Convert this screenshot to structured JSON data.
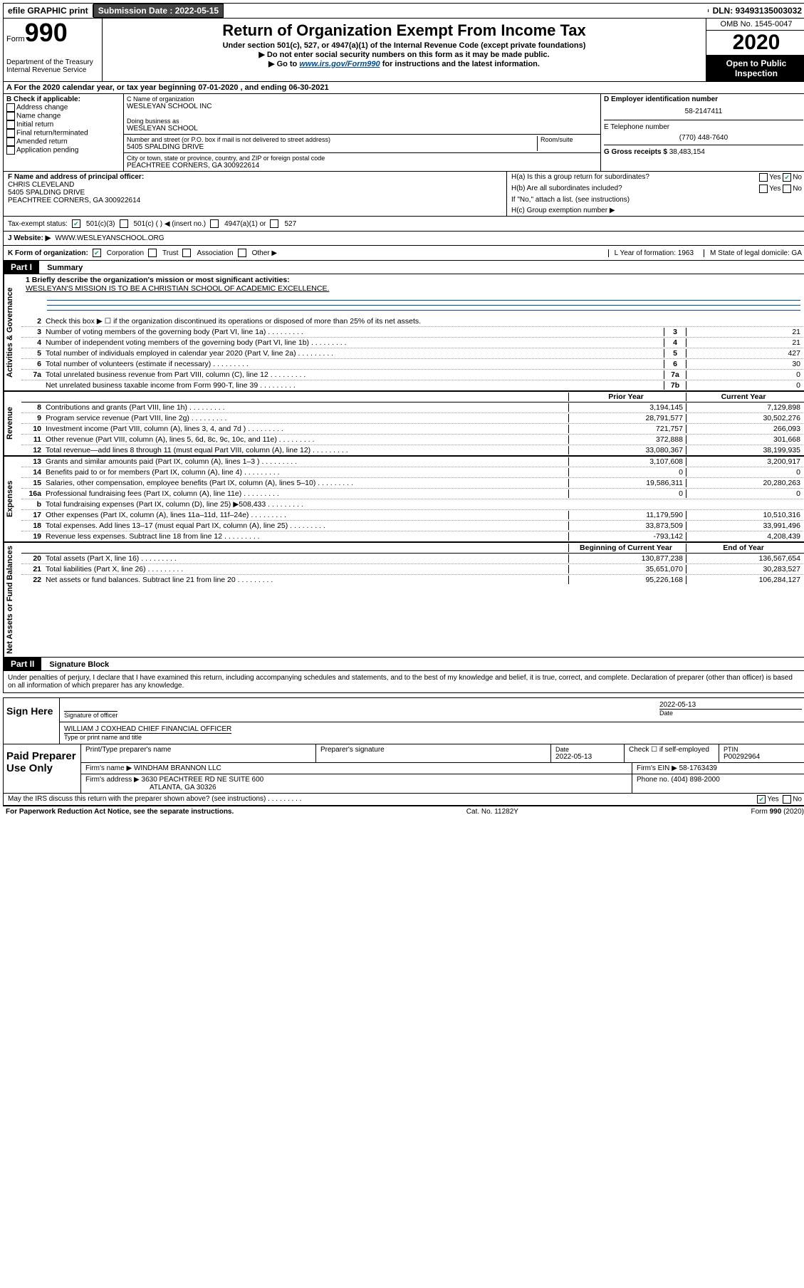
{
  "top_bar": {
    "efile": "efile GRAPHIC print",
    "sub_label": "Submission Date : 2022-05-15",
    "dln": "DLN: 93493135003032"
  },
  "header": {
    "form_word": "Form",
    "form_num": "990",
    "dept": "Department of the Treasury\nInternal Revenue Service",
    "title": "Return of Organization Exempt From Income Tax",
    "sub1": "Under section 501(c), 527, or 4947(a)(1) of the Internal Revenue Code (except private foundations)",
    "sub2": "▶ Do not enter social security numbers on this form as it may be made public.",
    "sub3_pre": "▶ Go to ",
    "sub3_link": "www.irs.gov/Form990",
    "sub3_post": " for instructions and the latest information.",
    "omb": "OMB No. 1545-0047",
    "year": "2020",
    "open": "Open to Public Inspection"
  },
  "row_a": "A For the 2020 calendar year, or tax year beginning 07-01-2020    , and ending 06-30-2021",
  "col_b": {
    "label": "B Check if applicable:",
    "opts": [
      "Address change",
      "Name change",
      "Initial return",
      "Final return/terminated",
      "Amended return",
      "Application pending"
    ]
  },
  "col_c": {
    "name_label": "C Name of organization",
    "name": "WESLEYAN SCHOOL INC",
    "dba_label": "Doing business as",
    "dba": "WESLEYAN SCHOOL",
    "street_label": "Number and street (or P.O. box if mail is not delivered to street address)",
    "room_label": "Room/suite",
    "street": "5405 SPALDING DRIVE",
    "city_label": "City or town, state or province, country, and ZIP or foreign postal code",
    "city": "PEACHTREE CORNERS, GA  300922614"
  },
  "col_d": {
    "ein_label": "D Employer identification number",
    "ein": "58-2147411",
    "phone_label": "E Telephone number",
    "phone": "(770) 448-7640",
    "gross_label": "G Gross receipts $",
    "gross": "38,483,154"
  },
  "section_f": {
    "label": "F Name and address of principal officer:",
    "name": "CHRIS CLEVELAND",
    "addr1": "5405 SPALDING DRIVE",
    "addr2": "PEACHTREE CORNERS, GA  300922614",
    "ha": "H(a)  Is this a group return for subordinates?",
    "hb": "H(b)  Are all subordinates included?",
    "hb_note": "If \"No,\" attach a list. (see instructions)",
    "hc": "H(c)  Group exemption number ▶",
    "yes": "Yes",
    "no": "No"
  },
  "tax_status": {
    "label": "Tax-exempt status:",
    "o1": "501(c)(3)",
    "o2": "501(c) (   ) ◀ (insert no.)",
    "o3": "4947(a)(1) or",
    "o4": "527"
  },
  "website": {
    "label": "J   Website: ▶",
    "value": "WWW.WESLEYANSCHOOL.ORG"
  },
  "k_row": {
    "k": "K Form of organization:",
    "corp": "Corporation",
    "trust": "Trust",
    "assoc": "Association",
    "other": "Other ▶",
    "l": "L Year of formation: 1963",
    "m": "M State of legal domicile: GA"
  },
  "part1": {
    "header": "Part I",
    "title": "Summary",
    "gov_label": "Activities & Governance",
    "rev_label": "Revenue",
    "exp_label": "Expenses",
    "net_label": "Net Assets or Fund Balances",
    "line1_label": "1  Briefly describe the organization's mission or most significant activities:",
    "mission": "WESLEYAN'S MISSION IS TO BE A CHRISTIAN SCHOOL OF ACADEMIC EXCELLENCE.",
    "line2": "Check this box ▶ ☐  if the organization discontinued its operations or disposed of more than 25% of its net assets.",
    "prior_year": "Prior Year",
    "current_year": "Current Year",
    "begin_year": "Beginning of Current Year",
    "end_year": "End of Year",
    "lines_single": [
      {
        "n": "3",
        "t": "Number of voting members of the governing body (Part VI, line 1a)",
        "box": "3",
        "v": "21"
      },
      {
        "n": "4",
        "t": "Number of independent voting members of the governing body (Part VI, line 1b)",
        "box": "4",
        "v": "21"
      },
      {
        "n": "5",
        "t": "Total number of individuals employed in calendar year 2020 (Part V, line 2a)",
        "box": "5",
        "v": "427"
      },
      {
        "n": "6",
        "t": "Total number of volunteers (estimate if necessary)",
        "box": "6",
        "v": "30"
      },
      {
        "n": "7a",
        "t": "Total unrelated business revenue from Part VIII, column (C), line 12",
        "box": "7a",
        "v": "0"
      },
      {
        "n": "",
        "t": "Net unrelated business taxable income from Form 990-T, line 39",
        "box": "7b",
        "v": "0"
      }
    ],
    "revenue_lines": [
      {
        "n": "8",
        "t": "Contributions and grants (Part VIII, line 1h)",
        "py": "3,194,145",
        "cy": "7,129,898"
      },
      {
        "n": "9",
        "t": "Program service revenue (Part VIII, line 2g)",
        "py": "28,791,577",
        "cy": "30,502,276"
      },
      {
        "n": "10",
        "t": "Investment income (Part VIII, column (A), lines 3, 4, and 7d )",
        "py": "721,757",
        "cy": "266,093"
      },
      {
        "n": "11",
        "t": "Other revenue (Part VIII, column (A), lines 5, 6d, 8c, 9c, 10c, and 11e)",
        "py": "372,888",
        "cy": "301,668"
      },
      {
        "n": "12",
        "t": "Total revenue—add lines 8 through 11 (must equal Part VIII, column (A), line 12)",
        "py": "33,080,367",
        "cy": "38,199,935"
      }
    ],
    "expense_lines": [
      {
        "n": "13",
        "t": "Grants and similar amounts paid (Part IX, column (A), lines 1–3 )",
        "py": "3,107,608",
        "cy": "3,200,917"
      },
      {
        "n": "14",
        "t": "Benefits paid to or for members (Part IX, column (A), line 4)",
        "py": "0",
        "cy": "0"
      },
      {
        "n": "15",
        "t": "Salaries, other compensation, employee benefits (Part IX, column (A), lines 5–10)",
        "py": "19,586,311",
        "cy": "20,280,263"
      },
      {
        "n": "16a",
        "t": "Professional fundraising fees (Part IX, column (A), line 11e)",
        "py": "0",
        "cy": "0"
      },
      {
        "n": "b",
        "t": "Total fundraising expenses (Part IX, column (D), line 25) ▶508,433",
        "py": "",
        "cy": "",
        "grey": true
      },
      {
        "n": "17",
        "t": "Other expenses (Part IX, column (A), lines 11a–11d, 11f–24e)",
        "py": "11,179,590",
        "cy": "10,510,316"
      },
      {
        "n": "18",
        "t": "Total expenses. Add lines 13–17 (must equal Part IX, column (A), line 25)",
        "py": "33,873,509",
        "cy": "33,991,496"
      },
      {
        "n": "19",
        "t": "Revenue less expenses. Subtract line 18 from line 12",
        "py": "-793,142",
        "cy": "4,208,439"
      }
    ],
    "net_lines": [
      {
        "n": "20",
        "t": "Total assets (Part X, line 16)",
        "py": "130,877,238",
        "cy": "136,567,654"
      },
      {
        "n": "21",
        "t": "Total liabilities (Part X, line 26)",
        "py": "35,651,070",
        "cy": "30,283,527"
      },
      {
        "n": "22",
        "t": "Net assets or fund balances. Subtract line 21 from line 20",
        "py": "95,226,168",
        "cy": "106,284,127"
      }
    ]
  },
  "part2": {
    "header": "Part II",
    "title": "Signature Block",
    "decl": "Under penalties of perjury, I declare that I have examined this return, including accompanying schedules and statements, and to the best of my knowledge and belief, it is true, correct, and complete. Declaration of preparer (other than officer) is based on all information of which preparer has any knowledge.",
    "sign_here": "Sign Here",
    "sig_officer": "Signature of officer",
    "date": "Date",
    "sig_date": "2022-05-13",
    "officer_name": "WILLIAM J COXHEAD  CHIEF FINANCIAL OFFICER",
    "type_name": "Type or print name and title",
    "paid": "Paid Preparer Use Only",
    "prep_name_label": "Print/Type preparer's name",
    "prep_sig_label": "Preparer's signature",
    "prep_date_label": "Date",
    "prep_date": "2022-05-13",
    "check_self": "Check ☐ if self-employed",
    "ptin_label": "PTIN",
    "ptin": "P00292964",
    "firm_name_label": "Firm's name   ▶",
    "firm_name": "WINDHAM BRANNON LLC",
    "firm_ein_label": "Firm's EIN ▶",
    "firm_ein": "58-1763439",
    "firm_addr_label": "Firm's address ▶",
    "firm_addr1": "3630 PEACHTREE RD NE SUITE 600",
    "firm_addr2": "ATLANTA, GA  30326",
    "phone_label": "Phone no.",
    "phone": "(404) 898-2000",
    "discuss": "May the IRS discuss this return with the preparer shown above? (see instructions)",
    "yes": "Yes",
    "no": "No"
  },
  "footer": {
    "left": "For Paperwork Reduction Act Notice, see the separate instructions.",
    "mid": "Cat. No. 11282Y",
    "right": "Form 990 (2020)"
  },
  "line2_num": "2",
  "line_b_placeholder": "b"
}
